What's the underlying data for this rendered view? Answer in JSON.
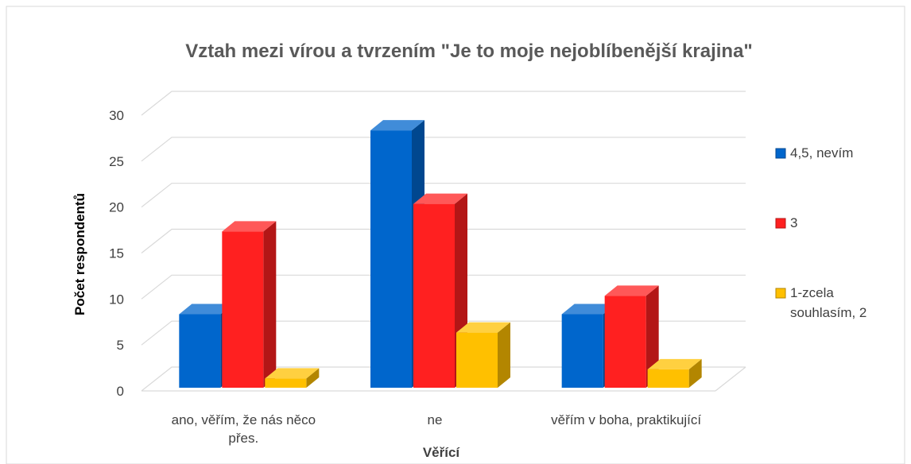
{
  "chart_data": {
    "type": "bar3d",
    "title": "Vztah mezi vírou a tvrzením \"Je to moje nejoblíbenější krajina\"",
    "x_label": "Věřící",
    "y_label": "Počet respondentů",
    "categories": [
      "ano, věřím, že nás něco přes.",
      "ne",
      "věřím v boha, praktikující"
    ],
    "series": [
      {
        "name": "4,5, nevím",
        "color": "#0066cc",
        "values": [
          8,
          28,
          8
        ]
      },
      {
        "name": "3",
        "color": "#ff2020",
        "values": [
          17,
          20,
          10
        ]
      },
      {
        "name": "1-zcela souhlasím, 2",
        "color": "#ffc000",
        "values": [
          1,
          6,
          2
        ]
      }
    ],
    "ylim": [
      0,
      30
    ],
    "yticks": [
      0,
      5,
      10,
      15,
      20,
      25,
      30
    ],
    "grid": true,
    "legend": "right"
  }
}
